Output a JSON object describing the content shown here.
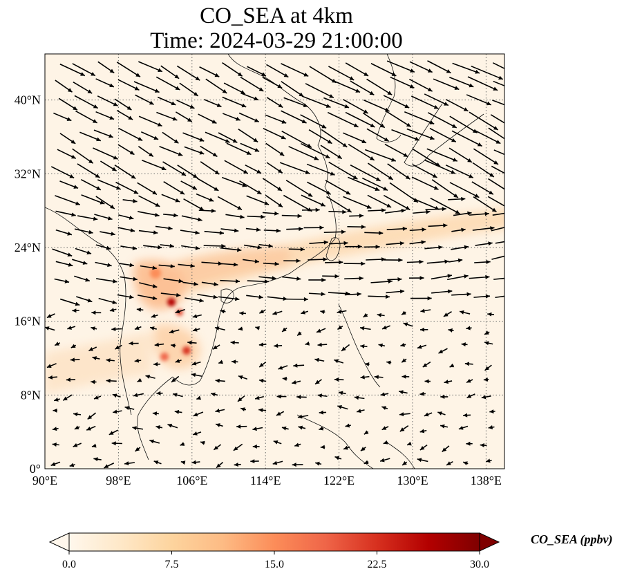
{
  "title": {
    "line1": "CO_SEA at 4km",
    "line2": "Time: 2024-03-29 21:00:00"
  },
  "map": {
    "region": "Southeast and East Asia",
    "projection": "PlateCarree",
    "lon_range": [
      90,
      140
    ],
    "lat_range": [
      0,
      45
    ],
    "x_ticks": [
      "90°E",
      "98°E",
      "106°E",
      "114°E",
      "122°E",
      "130°E",
      "138°E"
    ],
    "x_tick_values": [
      90,
      98,
      106,
      114,
      122,
      130,
      138
    ],
    "y_ticks": [
      "0°",
      "8°N",
      "16°N",
      "24°N",
      "32°N",
      "40°N"
    ],
    "y_tick_values": [
      0,
      8,
      16,
      24,
      32,
      40
    ],
    "gridlines": "dotted",
    "vectors": "wind arrows, predominantly westerly to northwesterly",
    "hotspots": [
      {
        "lon": 104,
        "lat": 18.2,
        "level": "high"
      },
      {
        "lon": 105.5,
        "lat": 12.8,
        "level": "high"
      },
      {
        "lon": 103.5,
        "lat": 12.2,
        "level": "high"
      },
      {
        "lon": 104.8,
        "lat": 17,
        "level": "high"
      },
      {
        "lon": 102,
        "lat": 20.5,
        "level": "medium"
      }
    ]
  },
  "colorbar": {
    "label": "CO_SEA (ppbv)",
    "colormap": "OrRd",
    "extend": "both",
    "min": 0,
    "max": 30,
    "ticks": [
      "0.0",
      "7.5",
      "15.0",
      "22.5",
      "30.0"
    ],
    "tick_values": [
      0,
      7.5,
      15,
      22.5,
      30
    ],
    "colors": [
      "#fff7ec",
      "#fee8c8",
      "#fdd49e",
      "#fdbb84",
      "#fc8d59",
      "#ef6548",
      "#d7301f",
      "#b30000",
      "#7f0000"
    ]
  }
}
